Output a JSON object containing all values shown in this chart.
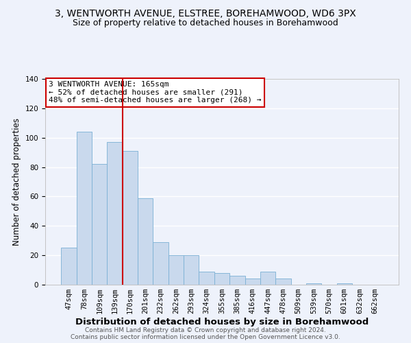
{
  "title": "3, WENTWORTH AVENUE, ELSTREE, BOREHAMWOOD, WD6 3PX",
  "subtitle": "Size of property relative to detached houses in Borehamwood",
  "xlabel": "Distribution of detached houses by size in Borehamwood",
  "ylabel": "Number of detached properties",
  "bar_color": "#c9d9ed",
  "bar_edge_color": "#7ab0d4",
  "background_color": "#eef2fb",
  "grid_color": "#ffffff",
  "categories": [
    "47sqm",
    "78sqm",
    "109sqm",
    "139sqm",
    "170sqm",
    "201sqm",
    "232sqm",
    "262sqm",
    "293sqm",
    "324sqm",
    "355sqm",
    "385sqm",
    "416sqm",
    "447sqm",
    "478sqm",
    "509sqm",
    "539sqm",
    "570sqm",
    "601sqm",
    "632sqm",
    "662sqm"
  ],
  "values": [
    25,
    104,
    82,
    97,
    91,
    59,
    29,
    20,
    20,
    9,
    8,
    6,
    4,
    9,
    4,
    0,
    1,
    0,
    1,
    0,
    0
  ],
  "ylim": [
    0,
    140
  ],
  "yticks": [
    0,
    20,
    40,
    60,
    80,
    100,
    120,
    140
  ],
  "vline_color": "#cc0000",
  "vline_x_index": 3.5,
  "annotation_text": "3 WENTWORTH AVENUE: 165sqm\n← 52% of detached houses are smaller (291)\n48% of semi-detached houses are larger (268) →",
  "annotation_box_color": "#ffffff",
  "annotation_box_edge_color": "#cc0000",
  "footer_line1": "Contains HM Land Registry data © Crown copyright and database right 2024.",
  "footer_line2": "Contains public sector information licensed under the Open Government Licence v3.0.",
  "title_fontsize": 10,
  "subtitle_fontsize": 9,
  "xlabel_fontsize": 9.5,
  "ylabel_fontsize": 8.5,
  "tick_fontsize": 7.5,
  "annotation_fontsize": 8,
  "footer_fontsize": 6.5
}
